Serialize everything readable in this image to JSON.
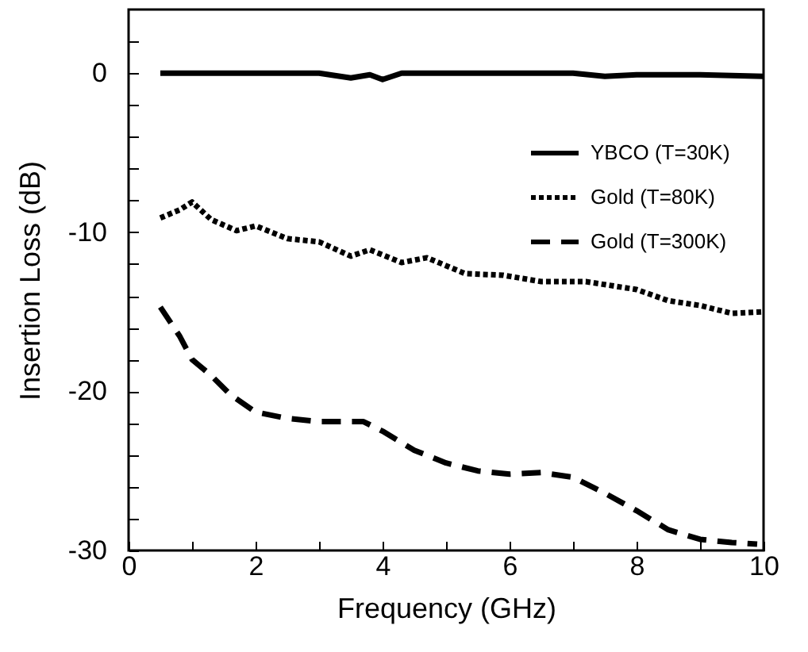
{
  "chart_data": {
    "type": "line",
    "xlabel": "Frequency (GHz)",
    "ylabel": "Insertion Loss (dB)",
    "xlim": [
      0,
      10
    ],
    "ylim": [
      -30,
      4
    ],
    "xticks": [
      0,
      {
        "value": 1,
        "label": null
      },
      2,
      {
        "value": 3,
        "label": null
      },
      4,
      {
        "value": 5,
        "label": null
      },
      6,
      {
        "value": 7,
        "label": null
      },
      8,
      {
        "value": 9,
        "label": null
      },
      10
    ],
    "yticks": [
      -30,
      {
        "value": -28,
        "label": null
      },
      {
        "value": -26,
        "label": null
      },
      {
        "value": -24,
        "label": null
      },
      {
        "value": -22,
        "label": null
      },
      -20,
      {
        "value": -18,
        "label": null
      },
      {
        "value": -16,
        "label": null
      },
      {
        "value": -14,
        "label": null
      },
      {
        "value": -12,
        "label": null
      },
      -10,
      {
        "value": -8,
        "label": null
      },
      {
        "value": -6,
        "label": null
      },
      {
        "value": -4,
        "label": null
      },
      {
        "value": -2,
        "label": null
      },
      0,
      {
        "value": 2,
        "label": null
      }
    ],
    "legend": "top right",
    "grid": false,
    "marker": "none",
    "series": [
      {
        "name": "YBCO (T=30K)",
        "color": "#000000",
        "line_style": "solid",
        "x": [
          0.5,
          1.5,
          2.5,
          3.0,
          3.5,
          3.8,
          4.0,
          4.3,
          5.0,
          6.0,
          7.0,
          7.5,
          8.0,
          9.0,
          10.0
        ],
        "values": [
          0,
          0,
          0,
          0,
          -0.3,
          -0.1,
          -0.4,
          0,
          0,
          0,
          0,
          -0.2,
          -0.1,
          -0.1,
          -0.2
        ]
      },
      {
        "name": "Gold      (T=80K)",
        "color": "#000000",
        "line_style": "dotted",
        "x": [
          0.5,
          0.8,
          1.0,
          1.3,
          1.7,
          2.0,
          2.5,
          3.0,
          3.5,
          3.8,
          4.3,
          4.7,
          5.3,
          5.9,
          6.5,
          7.2,
          8.0,
          8.5,
          9.0,
          9.5,
          10.0
        ],
        "values": [
          -9.1,
          -8.6,
          -8.1,
          -9.2,
          -9.9,
          -9.6,
          -10.4,
          -10.6,
          -11.5,
          -11.1,
          -11.9,
          -11.6,
          -12.6,
          -12.7,
          -13.1,
          -13.1,
          -13.6,
          -14.3,
          -14.6,
          -15.1,
          -15.0
        ]
      },
      {
        "name": "Gold      (T=300K)",
        "color": "#000000",
        "line_style": "dashed",
        "x": [
          0.5,
          0.8,
          1.0,
          1.3,
          1.6,
          2.0,
          2.5,
          3.0,
          3.7,
          4.0,
          4.5,
          5.0,
          5.5,
          6.0,
          6.5,
          7.0,
          7.5,
          8.0,
          8.5,
          9.0,
          9.5,
          9.9
        ],
        "values": [
          -14.7,
          -16.5,
          -18.0,
          -19.0,
          -20.2,
          -21.3,
          -21.7,
          -21.9,
          -21.9,
          -22.5,
          -23.7,
          -24.5,
          -25.0,
          -25.2,
          -25.1,
          -25.4,
          -26.4,
          -27.5,
          -28.7,
          -29.3,
          -29.5,
          -29.6
        ]
      }
    ]
  }
}
